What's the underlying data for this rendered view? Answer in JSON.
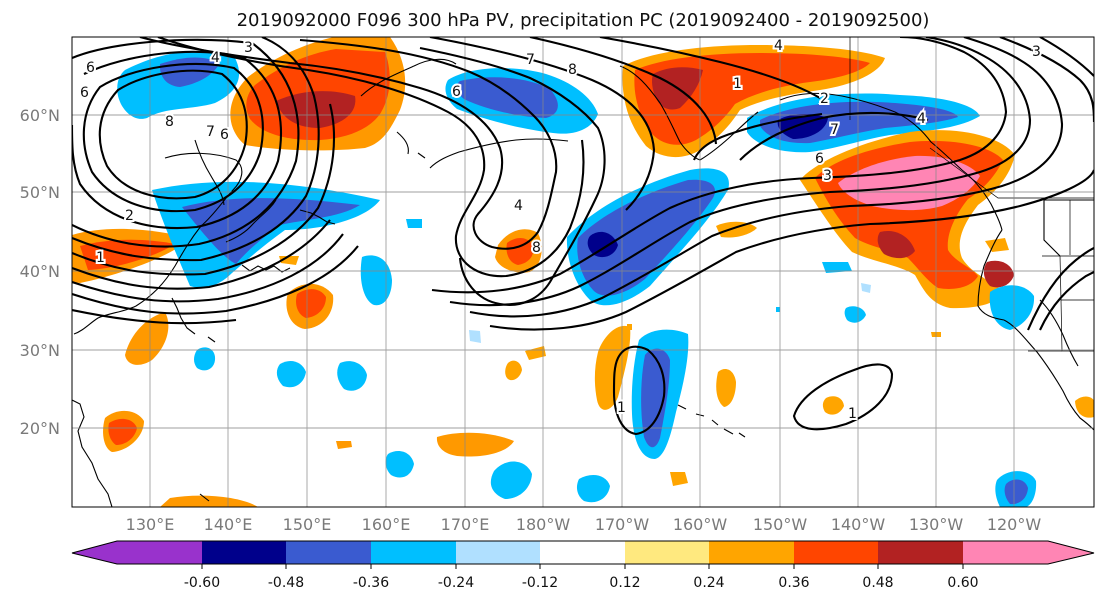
{
  "title": "2019092000 F096 300 hPa PV, precipitation PC (2019092400 - 2019092500)",
  "axes": {
    "lat_labels": [
      "60°N",
      "50°N",
      "40°N",
      "30°N",
      "20°N"
    ],
    "lon_labels": [
      "130°E",
      "140°E",
      "150°E",
      "160°E",
      "170°E",
      "180°W",
      "170°W",
      "160°W",
      "150°W",
      "140°W",
      "130°W",
      "120°W"
    ]
  },
  "contour_labels": [
    "3",
    "4",
    "6",
    "6",
    "8",
    "6",
    "7",
    "8",
    "2",
    "1",
    "2",
    "4",
    "3",
    "6",
    "7",
    "4",
    "6",
    "8",
    "1",
    "7",
    "1",
    "1",
    "3",
    "4"
  ],
  "colorbar": {
    "ticks": [
      "-0.60",
      "-0.48",
      "-0.36",
      "-0.24",
      "-0.12",
      "0.12",
      "0.24",
      "0.36",
      "0.48",
      "0.60"
    ],
    "colors": [
      "#9932cc",
      "#00008b",
      "#3a5bd0",
      "#00bfff",
      "#b0e0ff",
      "#ffffff",
      "#ffe97f",
      "#ffa500",
      "#ff4500",
      "#b22222",
      "#ff85b4"
    ]
  }
}
